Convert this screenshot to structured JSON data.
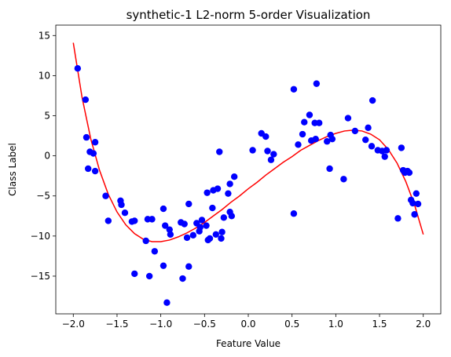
{
  "chart_data": {
    "type": "scatter",
    "title": "synthetic-1 L2-norm 5-order Visualization",
    "xlabel": "Feature Value",
    "ylabel": "Class Label",
    "xlim": [
      -2.2,
      2.2
    ],
    "ylim": [
      -19.7,
      16.3
    ],
    "grid": false,
    "legend": "none",
    "xticks": [
      -2.0,
      -1.5,
      -1.0,
      -0.5,
      0.0,
      0.5,
      1.0,
      1.5,
      2.0
    ],
    "xtick_labels": [
      "−2.0",
      "−1.5",
      "−1.0",
      "−0.5",
      "0.0",
      "0.5",
      "1.0",
      "1.5",
      "2.0"
    ],
    "yticks": [
      -15,
      -10,
      -5,
      0,
      5,
      10,
      15
    ],
    "ytick_labels": [
      "−15",
      "−10",
      "−5",
      "0",
      "5",
      "10",
      "15"
    ],
    "series": [
      {
        "type": "scatter",
        "color": "#0000ff",
        "points": [
          [
            -1.95,
            10.9
          ],
          [
            -1.86,
            7.0
          ],
          [
            -1.85,
            2.3
          ],
          [
            -1.83,
            -1.6
          ],
          [
            -1.81,
            0.5
          ],
          [
            -1.77,
            0.3
          ],
          [
            -1.75,
            1.7
          ],
          [
            -1.75,
            -1.9
          ],
          [
            -1.63,
            -5.0
          ],
          [
            -1.6,
            -8.1
          ],
          [
            -1.46,
            -5.6
          ],
          [
            -1.45,
            -6.1
          ],
          [
            -1.41,
            -7.1
          ],
          [
            -1.33,
            -8.2
          ],
          [
            -1.3,
            -8.1
          ],
          [
            -1.3,
            -14.7
          ],
          [
            -1.17,
            -10.6
          ],
          [
            -1.15,
            -7.9
          ],
          [
            -1.13,
            -15.0
          ],
          [
            -1.1,
            -7.9
          ],
          [
            -1.07,
            -11.9
          ],
          [
            -0.97,
            -6.6
          ],
          [
            -0.97,
            -13.7
          ],
          [
            -0.95,
            -8.7
          ],
          [
            -0.93,
            -18.3
          ],
          [
            -0.9,
            -9.2
          ],
          [
            -0.89,
            -9.8
          ],
          [
            -0.77,
            -8.3
          ],
          [
            -0.75,
            -15.3
          ],
          [
            -0.73,
            -8.5
          ],
          [
            -0.7,
            -10.2
          ],
          [
            -0.68,
            -13.8
          ],
          [
            -0.68,
            -6.0
          ],
          [
            -0.63,
            -9.9
          ],
          [
            -0.59,
            -8.4
          ],
          [
            -0.56,
            -9.4
          ],
          [
            -0.55,
            -8.9
          ],
          [
            -0.53,
            -8.0
          ],
          [
            -0.48,
            -8.7
          ],
          [
            -0.47,
            -4.6
          ],
          [
            -0.46,
            -10.5
          ],
          [
            -0.44,
            -10.3
          ],
          [
            -0.41,
            -6.5
          ],
          [
            -0.4,
            -4.3
          ],
          [
            -0.37,
            -9.8
          ],
          [
            -0.35,
            -4.1
          ],
          [
            -0.33,
            0.5
          ],
          [
            -0.31,
            -10.3
          ],
          [
            -0.3,
            -9.5
          ],
          [
            -0.28,
            -7.7
          ],
          [
            -0.23,
            -4.7
          ],
          [
            -0.21,
            -3.5
          ],
          [
            -0.21,
            -7.0
          ],
          [
            -0.19,
            -7.5
          ],
          [
            -0.16,
            -2.6
          ],
          [
            0.05,
            0.7
          ],
          [
            0.15,
            2.8
          ],
          [
            0.2,
            2.4
          ],
          [
            0.22,
            0.6
          ],
          [
            0.26,
            -0.5
          ],
          [
            0.29,
            0.2
          ],
          [
            0.52,
            8.3
          ],
          [
            0.52,
            -7.2
          ],
          [
            0.57,
            1.4
          ],
          [
            0.62,
            2.7
          ],
          [
            0.64,
            4.2
          ],
          [
            0.7,
            5.1
          ],
          [
            0.72,
            1.9
          ],
          [
            0.76,
            4.1
          ],
          [
            0.77,
            2.1
          ],
          [
            0.78,
            9.0
          ],
          [
            0.81,
            4.1
          ],
          [
            0.9,
            1.8
          ],
          [
            0.93,
            -1.6
          ],
          [
            0.94,
            2.6
          ],
          [
            0.96,
            2.1
          ],
          [
            1.09,
            -2.9
          ],
          [
            1.14,
            4.7
          ],
          [
            1.22,
            3.1
          ],
          [
            1.34,
            2.0
          ],
          [
            1.37,
            3.5
          ],
          [
            1.41,
            1.2
          ],
          [
            1.42,
            6.9
          ],
          [
            1.48,
            0.7
          ],
          [
            1.53,
            0.6
          ],
          [
            1.56,
            -0.1
          ],
          [
            1.58,
            0.7
          ],
          [
            1.71,
            -7.8
          ],
          [
            1.75,
            1.0
          ],
          [
            1.77,
            -1.8
          ],
          [
            1.79,
            -2.1
          ],
          [
            1.82,
            -1.9
          ],
          [
            1.84,
            -2.1
          ],
          [
            1.86,
            -5.5
          ],
          [
            1.88,
            -5.9
          ],
          [
            1.9,
            -7.3
          ],
          [
            1.92,
            -4.7
          ],
          [
            1.94,
            -6.0
          ]
        ]
      },
      {
        "type": "line",
        "color": "#ff0000",
        "points": [
          [
            -2.0,
            14.1
          ],
          [
            -1.9,
            7.3
          ],
          [
            -1.8,
            2.1
          ],
          [
            -1.7,
            -1.8
          ],
          [
            -1.6,
            -4.8
          ],
          [
            -1.5,
            -7.0
          ],
          [
            -1.4,
            -8.6
          ],
          [
            -1.3,
            -9.7
          ],
          [
            -1.2,
            -10.4
          ],
          [
            -1.1,
            -10.7
          ],
          [
            -1.0,
            -10.7
          ],
          [
            -0.9,
            -10.5
          ],
          [
            -0.8,
            -10.1
          ],
          [
            -0.7,
            -9.6
          ],
          [
            -0.6,
            -9.0
          ],
          [
            -0.5,
            -8.3
          ],
          [
            -0.4,
            -7.5
          ],
          [
            -0.3,
            -6.7
          ],
          [
            -0.2,
            -5.8
          ],
          [
            -0.1,
            -5.0
          ],
          [
            0.0,
            -4.1
          ],
          [
            0.1,
            -3.3
          ],
          [
            0.2,
            -2.4
          ],
          [
            0.3,
            -1.6
          ],
          [
            0.4,
            -0.8
          ],
          [
            0.5,
            -0.1
          ],
          [
            0.6,
            0.7
          ],
          [
            0.7,
            1.3
          ],
          [
            0.8,
            1.9
          ],
          [
            0.9,
            2.4
          ],
          [
            1.0,
            2.8
          ],
          [
            1.1,
            3.1
          ],
          [
            1.2,
            3.2
          ],
          [
            1.3,
            3.1
          ],
          [
            1.4,
            2.7
          ],
          [
            1.5,
            2.0
          ],
          [
            1.6,
            0.8
          ],
          [
            1.7,
            -0.9
          ],
          [
            1.8,
            -3.2
          ],
          [
            1.9,
            -6.1
          ],
          [
            2.0,
            -9.8
          ]
        ]
      }
    ]
  }
}
